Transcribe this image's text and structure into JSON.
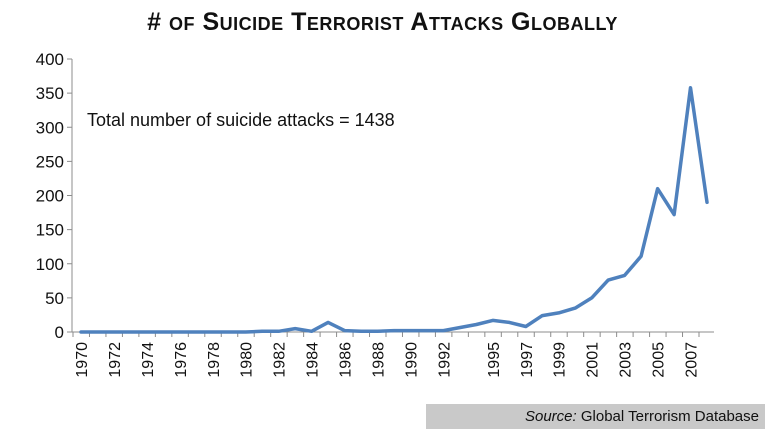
{
  "chart_data": {
    "type": "line",
    "title": "# of Suicide Terrorist Attacks Globally",
    "annotation": "Total number of suicide attacks = 1438",
    "source_label": "Source:",
    "source_text": "Global Terrorism Database",
    "line_color": "#4f81bd",
    "ylim": [
      0,
      400
    ],
    "yticks": [
      0,
      50,
      100,
      150,
      200,
      250,
      300,
      350,
      400
    ],
    "xtick_labels": [
      "1970",
      "1972",
      "1974",
      "1976",
      "1978",
      "1980",
      "1982",
      "1984",
      "1986",
      "1988",
      "1990",
      "1992",
      "1995",
      "1997",
      "1999",
      "2001",
      "2003",
      "2005",
      "2007"
    ],
    "grid": false,
    "series": [
      {
        "x": [
          1970,
          1971,
          1972,
          1973,
          1974,
          1975,
          1976,
          1977,
          1978,
          1979,
          1980,
          1981,
          1982,
          1983,
          1984,
          1985,
          1986,
          1987,
          1988,
          1989,
          1990,
          1991,
          1992,
          1994,
          1995,
          1996,
          1997,
          1998,
          1999,
          2000,
          2001,
          2002,
          2003,
          2004,
          2005,
          2006,
          2007,
          2008
        ],
        "values": [
          0,
          0,
          0,
          0,
          0,
          0,
          0,
          0,
          0,
          0,
          0,
          1,
          1,
          5,
          1,
          14,
          2,
          1,
          1,
          2,
          2,
          2,
          2,
          11,
          17,
          14,
          8,
          24,
          28,
          35,
          50,
          76,
          83,
          111,
          210,
          172,
          358,
          190
        ]
      }
    ]
  }
}
